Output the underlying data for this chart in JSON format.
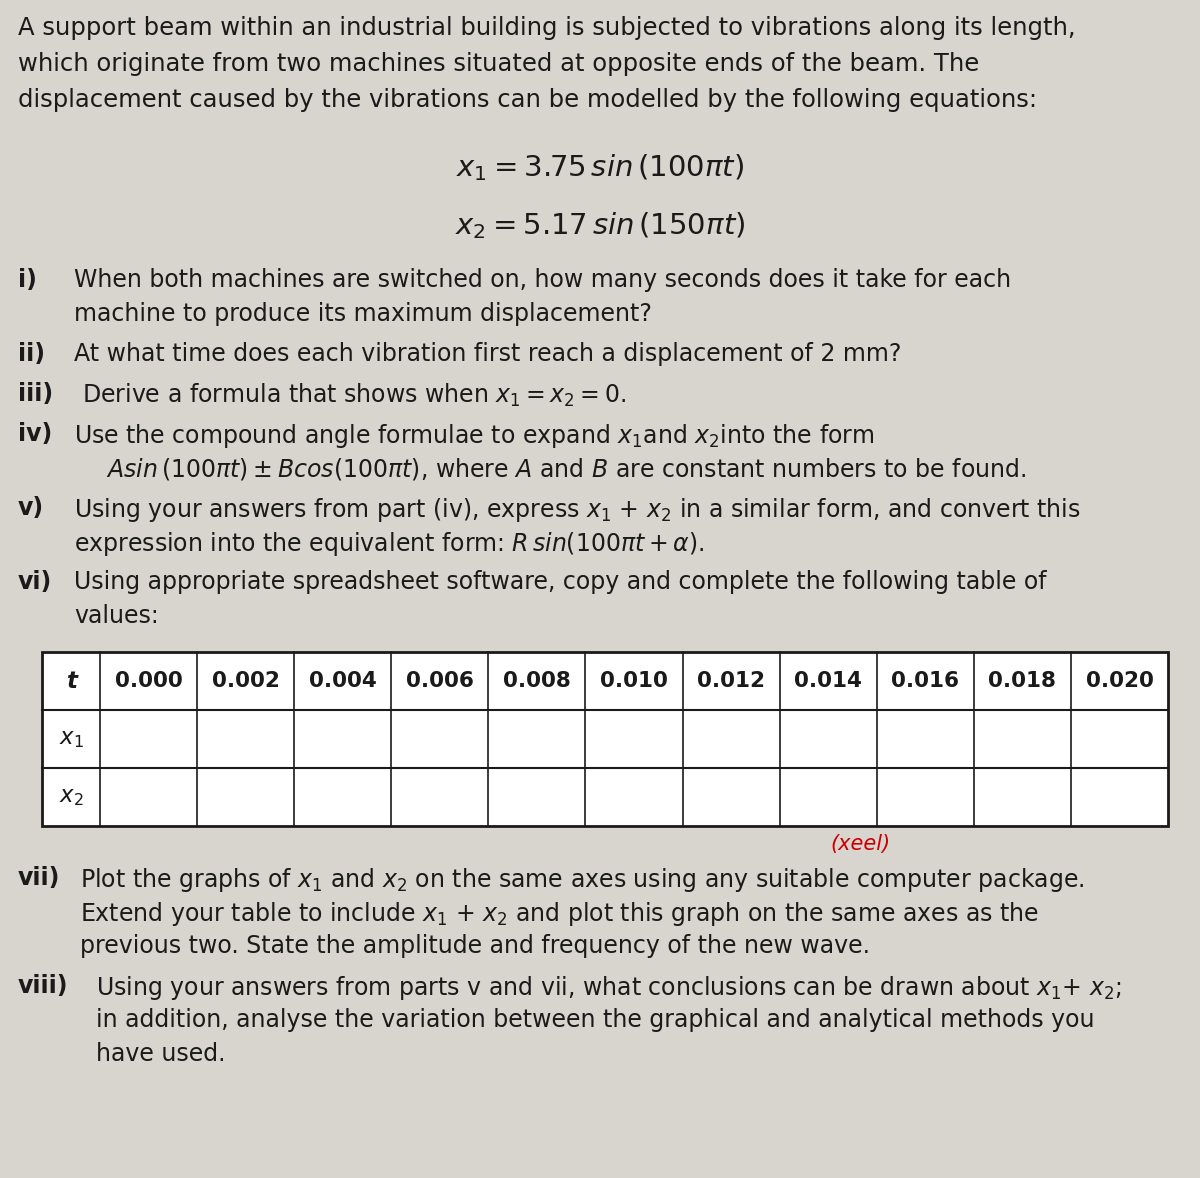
{
  "bg_color": "#d8d4ce",
  "text_color": "#1a1a1a",
  "fig_width": 12.0,
  "fig_height": 11.78,
  "dpi": 100,
  "intro_lines": [
    "A support beam within an industrial building is subjected to vibrations along its length,",
    "which originate from two machines situated at opposite ends of the beam. The",
    "displacement caused by the vibrations can be modelled by the following equations:"
  ],
  "eq1_text": "$x_1 = 3.75\\,sin\\,(100\\pi t)$",
  "eq2_text": "$x_2 = 5.17\\,sin\\,(150\\pi t)$",
  "parts": [
    {
      "label": "i)",
      "lines": [
        "When both machines are switched on, how many seconds does it take for each",
        "machine to produce its maximum displacement?"
      ],
      "indent": 0.062
    },
    {
      "label": "ii)",
      "lines": [
        "At what time does each vibration first reach a displacement of 2 mm?"
      ],
      "indent": 0.062
    },
    {
      "label": "iii)",
      "lines": [
        "Derive a formula that shows when $x_1 = x_2 = 0.$"
      ],
      "indent": 0.068
    },
    {
      "label": "iv)",
      "lines": [
        "Use the compound angle formulae to expand $x_1$and $x_2$into the form",
        "$Asin\\,(100\\pi t)\\pm Bcos(100\\pi t)$, where $A$ and $B$ are constant numbers to be found."
      ],
      "indent": 0.062,
      "line2_indent": 0.088
    },
    {
      "label": "v)",
      "lines": [
        "Using your answers from part (iv), express $x_1$ + $x_2$ in a similar form, and convert this",
        "expression into the equivalent form: $R\\,sin(100\\pi t + \\alpha)$."
      ],
      "indent": 0.062
    },
    {
      "label": "vi)",
      "lines": [
        "Using appropriate spreadsheet software, copy and complete the following table of",
        "values:"
      ],
      "indent": 0.062
    }
  ],
  "table_headers": [
    "t",
    "0.000",
    "0.002",
    "0.004",
    "0.006",
    "0.008",
    "0.010",
    "0.012",
    "0.014",
    "0.016",
    "0.018",
    "0.020"
  ],
  "table_rows": [
    "$x_1$",
    "$x_2$"
  ],
  "part_vii_label": "vii)",
  "part_vii_lines": [
    "Plot the graphs of $x_1$ and $x_2$ on the same axes using any suitable computer package.",
    "Extend your table to include $x_1$ + $x_2$ and plot this graph on the same axes as the",
    "previous two. State the amplitude and frequency of the new wave."
  ],
  "part_viii_label": "viii)",
  "part_viii_lines": [
    "Using your answers from parts v and vii, what conclusions can be drawn about $x_1$+ $x_2$;",
    "in addition, analyse the variation between the graphical and analytical methods you",
    "have used."
  ],
  "xeel_text": "(xeel)",
  "xeel_color": "#cc0000"
}
